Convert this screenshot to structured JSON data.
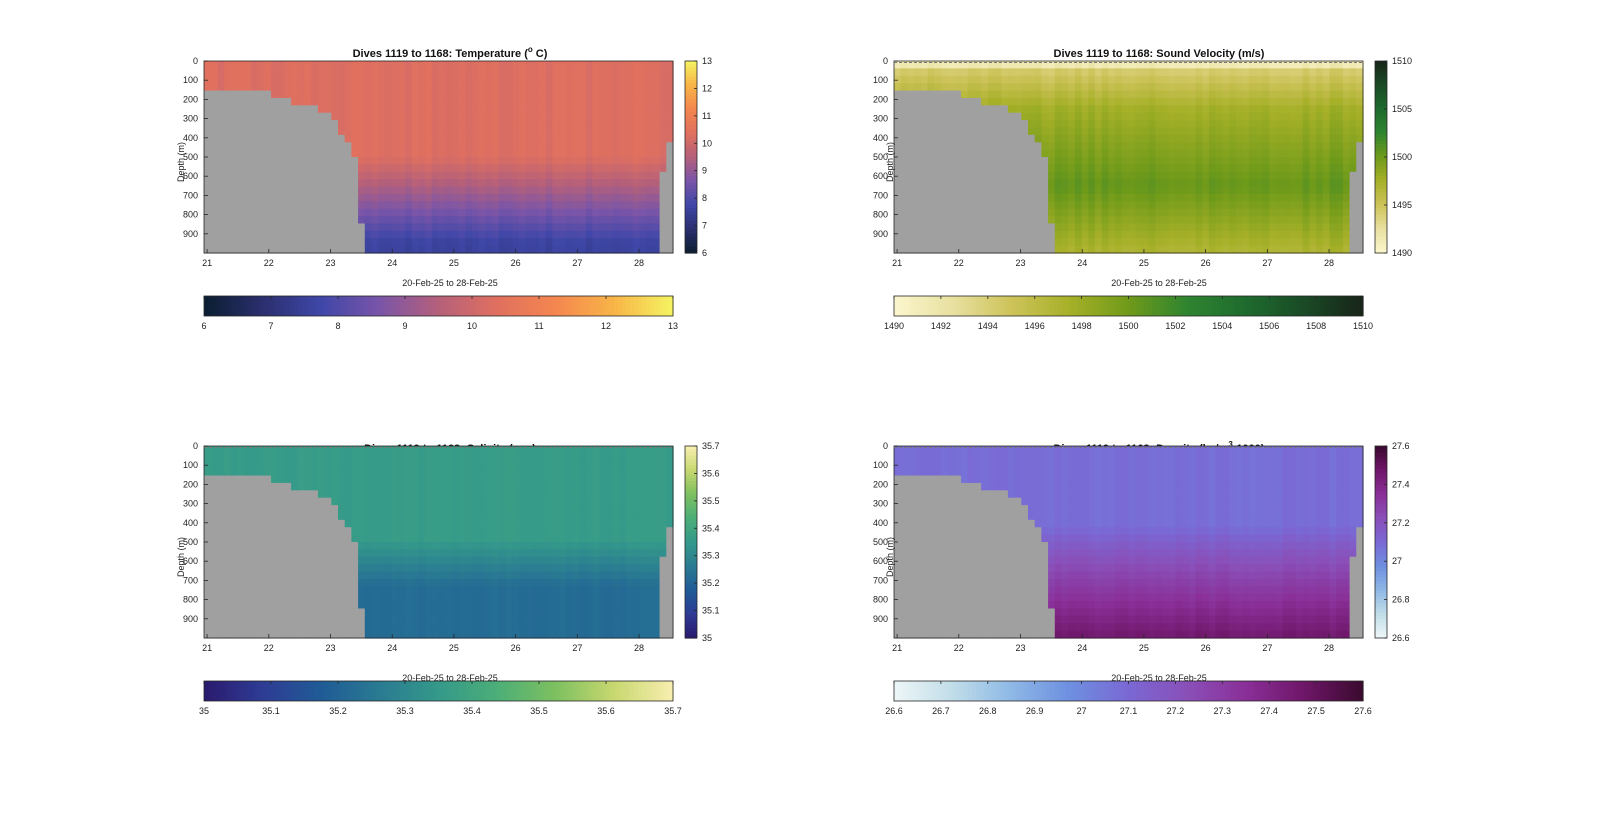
{
  "chart_data": [
    {
      "type": "heatmap",
      "title": "Dives 1119 to 1168: Temperature (°C)",
      "title_parts": {
        "main": "Dives 1119 to 1168: Temperature (",
        "sup": "o",
        "tail": " C)"
      },
      "xlabel": "20-Feb-25 to 28-Feb-25",
      "ylabel": "Depth (m)",
      "xlim": [
        20.95,
        28.55
      ],
      "ylim": [
        0,
        1000
      ],
      "x_ticks": [
        21,
        22,
        23,
        24,
        25,
        26,
        27,
        28
      ],
      "y_ticks": [
        0,
        100,
        200,
        300,
        400,
        500,
        600,
        700,
        800,
        900
      ],
      "clim": [
        6,
        13
      ],
      "colorbar_ticks_side": [
        "13",
        "12",
        "11",
        "10",
        "9",
        "8",
        "7",
        "6"
      ],
      "colorbar_ticks_bottom": [
        "6",
        "7",
        "8",
        "9",
        "10",
        "11",
        "12",
        "13"
      ],
      "colormap": [
        "#0b1e30",
        "#2b2f6e",
        "#3f47a8",
        "#7a55a8",
        "#b5607a",
        "#e0705f",
        "#f4864f",
        "#f8b547",
        "#f4f462"
      ],
      "surface_value": 10.3,
      "deep_value": 7.6,
      "thermocline_depth_m": 500,
      "masked_color": "#a0a0a0"
    },
    {
      "type": "heatmap",
      "title": "Dives 1119 to 1168: Sound Velocity (m/s)",
      "xlabel": "20-Feb-25 to 28-Feb-25",
      "ylabel": "Depth (m)",
      "xlim": [
        20.95,
        28.55
      ],
      "ylim": [
        0,
        1000
      ],
      "x_ticks": [
        21,
        22,
        23,
        24,
        25,
        26,
        27,
        28
      ],
      "y_ticks": [
        0,
        100,
        200,
        300,
        400,
        500,
        600,
        700,
        800,
        900
      ],
      "clim": [
        1490,
        1510
      ],
      "colorbar_ticks_side": [
        "1510",
        "1505",
        "1500",
        "1495",
        "1490"
      ],
      "colorbar_ticks_bottom": [
        "1490",
        "1492",
        "1494",
        "1496",
        "1498",
        "1500",
        "1502",
        "1504",
        "1506",
        "1508",
        "1510"
      ],
      "colormap": [
        "#fbf6cd",
        "#e8e0a0",
        "#cdc35a",
        "#a6b028",
        "#6f9a1a",
        "#2f8430",
        "#1e6b2e",
        "#1a4a26",
        "#182419"
      ],
      "surface_value": 1493.5,
      "mid_value": 1500.5,
      "deep_value": 1497,
      "masked_color": "#a0a0a0"
    },
    {
      "type": "heatmap",
      "title": "Dives 1119 to 1168: Salinity (psu)",
      "xlabel": "20-Feb-25 to 28-Feb-25",
      "ylabel": "Depth (m)",
      "xlim": [
        20.95,
        28.55
      ],
      "ylim": [
        0,
        1000
      ],
      "x_ticks": [
        21,
        22,
        23,
        24,
        25,
        26,
        27,
        28
      ],
      "y_ticks": [
        0,
        100,
        200,
        300,
        400,
        500,
        600,
        700,
        800,
        900
      ],
      "clim": [
        35,
        35.7
      ],
      "colorbar_ticks_side": [
        "35.7",
        "35.6",
        "35.5",
        "35.4",
        "35.3",
        "35.2",
        "35.1",
        "35"
      ],
      "colorbar_ticks_bottom": [
        "35",
        "35.1",
        "35.2",
        "35.3",
        "35.4",
        "35.5",
        "35.6",
        "35.7"
      ],
      "colormap": [
        "#2a1a6e",
        "#2e3c94",
        "#1f5b96",
        "#2a7b92",
        "#34998a",
        "#4cae78",
        "#7ec060",
        "#c8d870",
        "#f8eeb0"
      ],
      "surface_value": 35.36,
      "deep_value": 35.22,
      "masked_color": "#a0a0a0"
    },
    {
      "type": "heatmap",
      "title": "Dives 1119 to 1168: Density (kg/m³-1000)",
      "title_parts": {
        "main": "Dives 1119 to 1168: Density (kg/m",
        "sup": "3",
        "tail": "-1000)"
      },
      "xlabel": "20-Feb-25 to 28-Feb-25",
      "ylabel": "Depth (m)",
      "xlim": [
        20.95,
        28.55
      ],
      "ylim": [
        0,
        1000
      ],
      "x_ticks": [
        21,
        22,
        23,
        24,
        25,
        26,
        27,
        28
      ],
      "y_ticks": [
        0,
        100,
        200,
        300,
        400,
        500,
        600,
        700,
        800,
        900
      ],
      "clim": [
        26.6,
        27.6
      ],
      "colorbar_ticks_side": [
        "27.6",
        "27.4",
        "27.2",
        "27",
        "26.8",
        "26.6"
      ],
      "colorbar_ticks_bottom": [
        "26.6",
        "26.7",
        "26.8",
        "26.9",
        "27",
        "27.1",
        "27.2",
        "27.3",
        "27.4",
        "27.5",
        "27.6"
      ],
      "colormap": [
        "#eef6f8",
        "#c0dde8",
        "#8eb8e6",
        "#6e8fe0",
        "#7a68d4",
        "#8a4fb8",
        "#8a2f98",
        "#6e1668",
        "#3a0a2e"
      ],
      "surface_value": 27.08,
      "deep_value": 27.45,
      "masked_color": "#a0a0a0"
    }
  ]
}
